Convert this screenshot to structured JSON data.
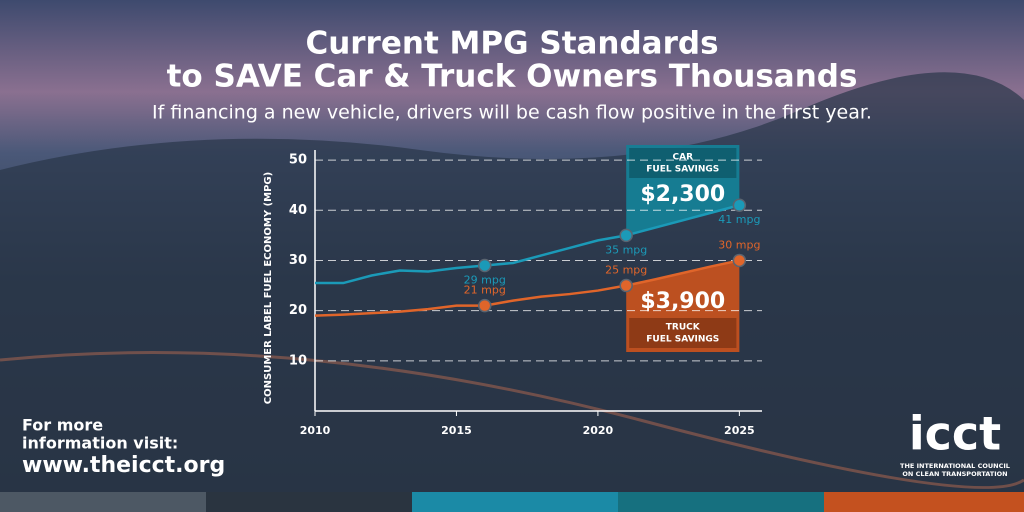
{
  "chart_data": {
    "type": "line",
    "title": "Current MPG Standards",
    "title_line2": "to SAVE Car & Truck Owners Thousands",
    "subtitle": "If financing a new vehicle, drivers will be cash flow positive in the first year.",
    "y_label": "CONSUMER LABEL FUEL ECONOMY (MPG)",
    "x": [
      2010,
      2011,
      2012,
      2013,
      2014,
      2015,
      2016,
      2017,
      2018,
      2019,
      2020,
      2021,
      2022,
      2023,
      2024,
      2025
    ],
    "xlim": [
      2010,
      2025.8
    ],
    "xticks": [
      2010,
      2015,
      2020,
      2025
    ],
    "ylim": [
      0,
      54
    ],
    "yticks": [
      10,
      20,
      30,
      40,
      50
    ],
    "grid": true,
    "series": [
      {
        "name": "Car",
        "color": "#1b9ab8",
        "label_position": "below",
        "values": [
          25.5,
          25.5,
          27,
          28,
          27.8,
          28.5,
          29,
          29.5,
          31,
          32.5,
          34,
          35,
          36.5,
          38,
          39.5,
          41
        ],
        "value_labels": [
          null,
          null,
          null,
          null,
          null,
          null,
          "29 mpg",
          null,
          null,
          null,
          null,
          "35 mpg",
          null,
          null,
          null,
          "41 mpg"
        ]
      },
      {
        "name": "Truck",
        "color": "#e0652a",
        "label_position": "above",
        "values": [
          19,
          19.2,
          19.5,
          19.8,
          20.3,
          21,
          21,
          22,
          22.8,
          23.3,
          24,
          25,
          26.2,
          27.5,
          28.8,
          30
        ],
        "value_labels": [
          null,
          null,
          null,
          null,
          null,
          null,
          "21 mpg",
          null,
          null,
          null,
          null,
          "25 mpg",
          null,
          null,
          null,
          "30 mpg"
        ]
      }
    ],
    "callouts": [
      {
        "heading": "CAR",
        "heading2": "FUEL SAVINGS",
        "amount": "$2,300"
      },
      {
        "heading": "TRUCK",
        "heading2": "FUEL SAVINGS",
        "amount": "$3,900"
      }
    ],
    "footer": {
      "line1": "For more",
      "line2": "information visit:",
      "url": "www.theicct.org"
    },
    "logo": {
      "name": "icct",
      "line1": "THE INTERNATIONAL COUNCIL",
      "line2": "ON CLEAN TRANSPORTATION"
    }
  }
}
